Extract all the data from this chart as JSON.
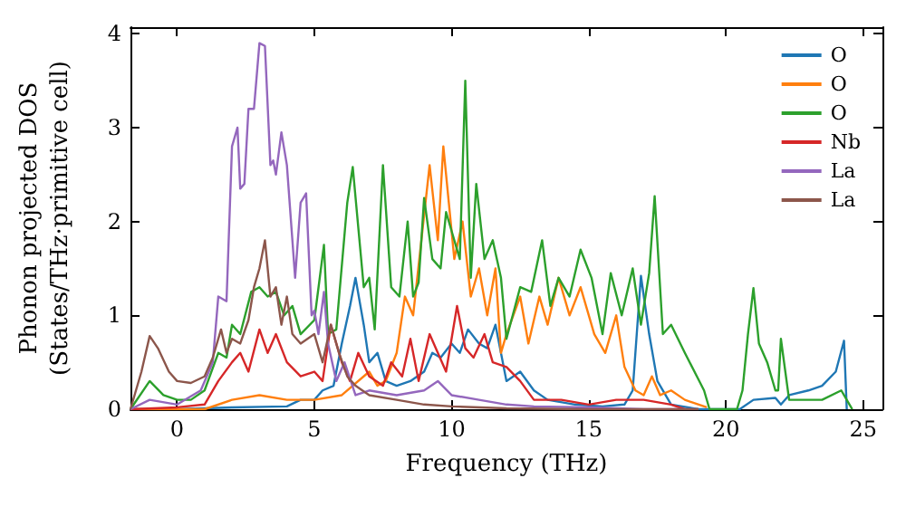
{
  "chart_data": {
    "type": "line",
    "xlabel": "Frequency (THz)",
    "ylabel": "Phonon projected DOS\n(States/THz·primitive cell)",
    "xlim": [
      -1.7,
      25.7
    ],
    "ylim": [
      0,
      4.07
    ],
    "xticks": [
      0,
      5,
      10,
      15,
      20,
      25
    ],
    "yticks": [
      0,
      1,
      2,
      3,
      4
    ],
    "grid": false,
    "legend": "top right",
    "marker": "none",
    "line_style": "solid",
    "series": [
      {
        "name": "O",
        "color": "#1f77b4",
        "x": [
          -1.7,
          0,
          2,
          4,
          4.5,
          5,
          5.3,
          5.7,
          6,
          6.3,
          6.5,
          6.8,
          7,
          7.3,
          7.6,
          8,
          8.5,
          9,
          9.3,
          9.6,
          10,
          10.3,
          10.6,
          11,
          11.3,
          11.6,
          12,
          12.5,
          13,
          13.5,
          14.5,
          15.5,
          16.3,
          16.6,
          16.9,
          17.2,
          17.5,
          18,
          19,
          20.5,
          21,
          21.8,
          22,
          22.3,
          23,
          23.5,
          24,
          24.3,
          24.4
        ],
        "values": [
          0,
          0,
          0.02,
          0.03,
          0.1,
          0.1,
          0.2,
          0.25,
          0.7,
          1.1,
          1.4,
          0.9,
          0.5,
          0.6,
          0.3,
          0.25,
          0.3,
          0.4,
          0.6,
          0.55,
          0.7,
          0.6,
          0.85,
          0.7,
          0.65,
          0.9,
          0.3,
          0.4,
          0.2,
          0.1,
          0.05,
          0.03,
          0.05,
          0.2,
          1.42,
          0.8,
          0.3,
          0.05,
          0,
          0,
          0.1,
          0.12,
          0.05,
          0.15,
          0.2,
          0.25,
          0.4,
          0.73,
          0
        ]
      },
      {
        "name": "O",
        "color": "#ff7f0e",
        "x": [
          -1.7,
          1,
          2,
          3,
          4,
          5,
          6,
          7,
          7.3,
          7.6,
          8,
          8.3,
          8.6,
          8.9,
          9.2,
          9.5,
          9.7,
          9.9,
          10.1,
          10.4,
          10.7,
          11,
          11.3,
          11.6,
          11.8,
          12,
          12.5,
          12.8,
          13.2,
          13.5,
          13.9,
          14.3,
          14.7,
          15.2,
          15.6,
          16,
          16.3,
          16.7,
          17,
          17.3,
          17.6,
          18,
          18.5,
          19.3
        ],
        "values": [
          0,
          0,
          0.1,
          0.15,
          0.1,
          0.1,
          0.15,
          0.4,
          0.25,
          0.3,
          0.6,
          1.2,
          1,
          1.8,
          2.6,
          1.8,
          2.8,
          2.2,
          1.6,
          2,
          1.2,
          1.5,
          1,
          1.5,
          0.6,
          0.8,
          1.2,
          0.7,
          1.2,
          0.9,
          1.4,
          1,
          1.3,
          0.8,
          0.6,
          1,
          0.45,
          0.2,
          0.15,
          0.35,
          0.15,
          0.2,
          0.1,
          0.02
        ]
      },
      {
        "name": "O",
        "color": "#2ca02c",
        "x": [
          -1.7,
          -1,
          -0.5,
          0,
          0.5,
          1,
          1.5,
          1.8,
          2,
          2.3,
          2.7,
          3,
          3.3,
          3.6,
          3.9,
          4.2,
          4.5,
          5,
          5.35,
          5.5,
          5.8,
          6.2,
          6.4,
          6.8,
          7,
          7.2,
          7.5,
          7.8,
          8.1,
          8.4,
          8.6,
          8.8,
          9,
          9.3,
          9.6,
          9.8,
          10,
          10.3,
          10.5,
          10.7,
          10.9,
          11.2,
          11.5,
          11.8,
          12,
          12.5,
          12.9,
          13.3,
          13.6,
          13.9,
          14.3,
          14.7,
          15.1,
          15.5,
          15.8,
          16.2,
          16.6,
          16.9,
          17.2,
          17.4,
          17.7,
          18,
          18.5,
          19.2,
          19.4,
          20.4,
          20.6,
          20.8,
          21,
          21.2,
          21.5,
          21.8,
          21.9,
          22,
          22.3,
          23.5,
          24.2,
          24.5,
          24.6
        ],
        "values": [
          0,
          0.3,
          0.15,
          0.1,
          0.1,
          0.2,
          0.6,
          0.55,
          0.9,
          0.8,
          1.25,
          1.3,
          1.2,
          1.25,
          1,
          1.1,
          0.8,
          0.95,
          1.75,
          0.8,
          0.85,
          2.2,
          2.58,
          1.3,
          1.4,
          0.85,
          2.6,
          1.3,
          1.2,
          2,
          1.2,
          1.35,
          2.25,
          1.6,
          1.5,
          2.1,
          1.9,
          1.6,
          3.5,
          1.4,
          2.4,
          1.6,
          1.8,
          1.4,
          0.75,
          1.3,
          1.25,
          1.8,
          1.1,
          1.4,
          1.2,
          1.7,
          1.4,
          0.8,
          1.45,
          1,
          1.5,
          0.9,
          1.45,
          2.27,
          0.8,
          0.9,
          0.6,
          0.2,
          0,
          0,
          0.2,
          0.8,
          1.29,
          0.7,
          0.5,
          0.2,
          0.2,
          0.75,
          0.1,
          0.1,
          0.2,
          0.05,
          0
        ]
      },
      {
        "name": "Nb",
        "color": "#d62728",
        "x": [
          -1.7,
          0,
          1,
          1.5,
          2,
          2.3,
          2.6,
          3,
          3.3,
          3.6,
          4,
          4.5,
          5,
          5.3,
          5.6,
          6,
          6.3,
          6.6,
          7,
          7.5,
          7.8,
          8.2,
          8.5,
          8.8,
          9.2,
          9.5,
          9.8,
          10.2,
          10.5,
          10.8,
          11.2,
          11.5,
          12,
          12.5,
          13,
          14,
          15,
          16,
          17,
          18,
          18.5
        ],
        "values": [
          0,
          0.02,
          0.05,
          0.3,
          0.5,
          0.6,
          0.4,
          0.85,
          0.6,
          0.8,
          0.5,
          0.35,
          0.4,
          0.3,
          0.9,
          0.5,
          0.3,
          0.6,
          0.35,
          0.25,
          0.5,
          0.35,
          0.75,
          0.3,
          0.8,
          0.6,
          0.4,
          1.1,
          0.65,
          0.55,
          0.8,
          0.5,
          0.45,
          0.3,
          0.1,
          0.1,
          0.05,
          0.1,
          0.1,
          0.05,
          0
        ]
      },
      {
        "name": "La",
        "color": "#9467bd",
        "x": [
          -1.7,
          -1,
          0,
          0.86,
          1.3,
          1.5,
          1.8,
          2,
          2.2,
          2.3,
          2.45,
          2.6,
          2.8,
          3,
          3.2,
          3.4,
          3.5,
          3.6,
          3.8,
          4,
          4.3,
          4.5,
          4.7,
          4.9,
          5,
          5.15,
          5.35,
          5.5,
          5.8,
          6.1,
          6.5,
          7,
          8,
          9,
          9.5,
          10,
          11,
          12,
          13,
          15,
          16,
          17,
          19
        ],
        "values": [
          0,
          0.1,
          0.05,
          0.2,
          0.5,
          1.2,
          1.15,
          2.8,
          3,
          2.35,
          2.4,
          3.2,
          3.2,
          3.9,
          3.87,
          2.6,
          2.65,
          2.5,
          2.95,
          2.6,
          1.4,
          2.2,
          2.3,
          1,
          1.05,
          0.8,
          1.25,
          0.7,
          0.3,
          0.5,
          0.15,
          0.2,
          0.15,
          0.2,
          0.3,
          0.15,
          0.1,
          0.05,
          0.03,
          0.02,
          0.01,
          0,
          0
        ]
      },
      {
        "name": "La",
        "color": "#8c564b",
        "x": [
          -1.7,
          -1.3,
          -1,
          -0.7,
          -0.3,
          0,
          0.5,
          1,
          1.3,
          1.6,
          1.8,
          2,
          2.3,
          2.6,
          2.8,
          3,
          3.2,
          3.4,
          3.6,
          3.8,
          4,
          4.2,
          4.5,
          5,
          5.3,
          5.6,
          5.9,
          6.2,
          6.5,
          7,
          8,
          9,
          10,
          12,
          15,
          19
        ],
        "values": [
          0,
          0.4,
          0.78,
          0.65,
          0.4,
          0.3,
          0.28,
          0.35,
          0.55,
          0.85,
          0.6,
          0.75,
          0.7,
          0.95,
          1.3,
          1.5,
          1.8,
          1.2,
          1.3,
          0.9,
          1.2,
          0.8,
          0.7,
          0.8,
          0.5,
          0.9,
          0.6,
          0.35,
          0.25,
          0.15,
          0.1,
          0.05,
          0.03,
          0.01,
          0,
          0
        ]
      }
    ]
  }
}
